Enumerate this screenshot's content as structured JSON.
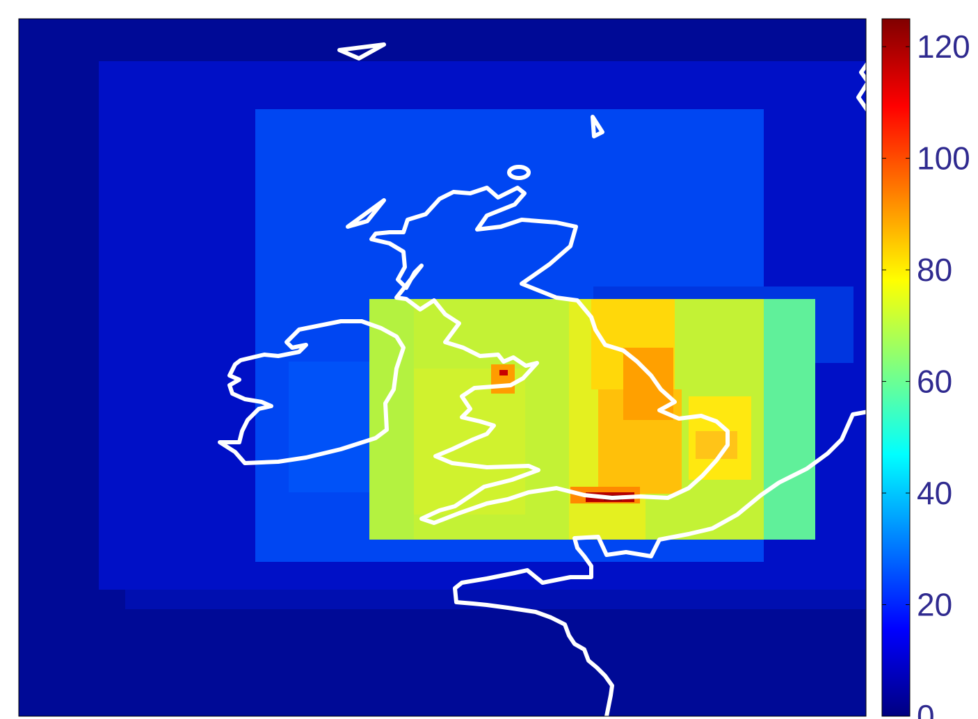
{
  "colorbar": {
    "colormap": "jet",
    "min": 0,
    "max": 125,
    "ticks": [
      {
        "value": 0,
        "label": "0"
      },
      {
        "value": 20,
        "label": "20"
      },
      {
        "value": 40,
        "label": "40"
      },
      {
        "value": 60,
        "label": "60"
      },
      {
        "value": 80,
        "label": "80"
      },
      {
        "value": 100,
        "label": "100"
      },
      {
        "value": 120,
        "label": "120"
      }
    ],
    "tick_color": "#2f2a8f"
  },
  "map": {
    "region": "British Isles and north-western France",
    "coastline_color": "#ffffff",
    "background_level": "lowest (deep blue)",
    "nested_domains": [
      {
        "name": "outer-domain",
        "approx_value": 8
      },
      {
        "name": "middle-domain",
        "approx_value": 22
      },
      {
        "name": "inner-domain",
        "approx_value": 62
      },
      {
        "name": "england-hotspot",
        "approx_value": 80
      },
      {
        "name": "london-hotspot",
        "approx_value": 110
      }
    ]
  }
}
